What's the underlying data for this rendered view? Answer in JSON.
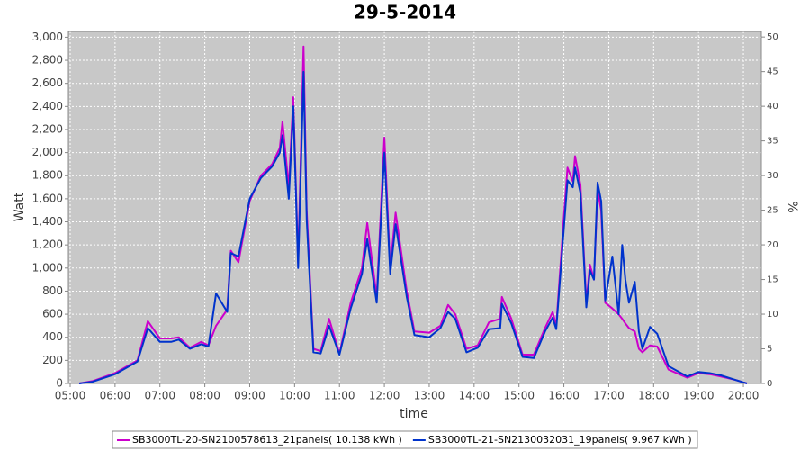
{
  "chart_data": {
    "type": "line",
    "title": "29-5-2014",
    "x_label": "time",
    "y_label": "Watt",
    "y2_label": "%",
    "x": [
      5.2,
      5.5,
      6.0,
      6.5,
      6.73,
      7.0,
      7.25,
      7.42,
      7.67,
      7.92,
      8.08,
      8.25,
      8.5,
      8.58,
      8.75,
      9.0,
      9.25,
      9.5,
      9.67,
      9.73,
      9.87,
      9.97,
      10.08,
      10.2,
      10.27,
      10.42,
      10.58,
      10.77,
      11.0,
      11.25,
      11.5,
      11.62,
      11.83,
      12.0,
      12.13,
      12.25,
      12.5,
      12.67,
      13.0,
      13.25,
      13.42,
      13.58,
      13.83,
      14.08,
      14.33,
      14.58,
      14.62,
      14.83,
      15.08,
      15.33,
      15.58,
      15.75,
      15.83,
      16.0,
      16.08,
      16.2,
      16.25,
      16.37,
      16.5,
      16.58,
      16.67,
      16.75,
      16.83,
      16.92,
      17.08,
      17.22,
      17.3,
      17.37,
      17.45,
      17.58,
      17.67,
      17.75,
      17.92,
      18.08,
      18.33,
      18.75,
      19.0,
      19.25,
      19.5,
      19.83,
      20.08
    ],
    "series": [
      {
        "name": "SB3000TL-20-SN2100578613_21panels( 10.138 kWh )",
        "color": "#cc00cc",
        "values": [
          0,
          20,
          90,
          200,
          540,
          390,
          390,
          400,
          310,
          360,
          330,
          500,
          640,
          1150,
          1050,
          1580,
          1800,
          1900,
          2040,
          2270,
          1700,
          2480,
          1050,
          2920,
          1500,
          300,
          280,
          560,
          260,
          700,
          1000,
          1390,
          750,
          2130,
          1000,
          1480,
          800,
          450,
          440,
          500,
          680,
          600,
          300,
          330,
          530,
          560,
          750,
          560,
          250,
          250,
          480,
          620,
          500,
          1450,
          1870,
          1750,
          1970,
          1720,
          700,
          1030,
          900,
          1670,
          1500,
          700,
          650,
          600,
          560,
          520,
          480,
          450,
          300,
          270,
          330,
          320,
          120,
          50,
          90,
          80,
          60,
          30,
          0
        ]
      },
      {
        "name": "SB3000TL-21-SN2130032031_19panels( 9.967 kWh )",
        "color": "#0033cc",
        "values": [
          0,
          15,
          80,
          190,
          480,
          360,
          360,
          380,
          300,
          340,
          320,
          780,
          620,
          1130,
          1100,
          1600,
          1780,
          1880,
          2000,
          2150,
          1600,
          2400,
          1000,
          2700,
          1420,
          270,
          260,
          500,
          250,
          650,
          950,
          1250,
          700,
          2000,
          950,
          1380,
          750,
          420,
          400,
          480,
          620,
          560,
          270,
          310,
          470,
          480,
          690,
          520,
          230,
          220,
          450,
          570,
          470,
          1350,
          1760,
          1700,
          1870,
          1650,
          660,
          980,
          900,
          1740,
          1580,
          720,
          1100,
          600,
          1200,
          900,
          700,
          880,
          450,
          300,
          490,
          430,
          150,
          60,
          100,
          90,
          70,
          30,
          0
        ]
      }
    ],
    "xlim": [
      4.96,
      20.4
    ],
    "xticks": [
      {
        "value": 5,
        "label": "05:00"
      },
      {
        "value": 6,
        "label": "06:00"
      },
      {
        "value": 7,
        "label": "07:00"
      },
      {
        "value": 8,
        "label": "08:00"
      },
      {
        "value": 9,
        "label": "09:00"
      },
      {
        "value": 10,
        "label": "10:00"
      },
      {
        "value": 11,
        "label": "11:00"
      },
      {
        "value": 12,
        "label": "12:00"
      },
      {
        "value": 13,
        "label": "13:00"
      },
      {
        "value": 14,
        "label": "14:00"
      },
      {
        "value": 15,
        "label": "15:00"
      },
      {
        "value": 16,
        "label": "16:00"
      },
      {
        "value": 17,
        "label": "17:00"
      },
      {
        "value": 18,
        "label": "18:00"
      },
      {
        "value": 19,
        "label": "19:00"
      },
      {
        "value": 20,
        "label": "20:00"
      }
    ],
    "ylim": [
      0,
      3050
    ],
    "yticks": [
      0,
      200,
      400,
      600,
      800,
      {
        "value": 1000,
        "label": "1,000"
      },
      {
        "value": 1200,
        "label": "1,200"
      },
      {
        "value": 1400,
        "label": "1,400"
      },
      {
        "value": 1600,
        "label": "1,600"
      },
      {
        "value": 1800,
        "label": "1,800"
      },
      {
        "value": 2000,
        "label": "2,000"
      },
      {
        "value": 2200,
        "label": "2,200"
      },
      {
        "value": 2400,
        "label": "2,400"
      },
      {
        "value": 2600,
        "label": "2,600"
      },
      {
        "value": 2800,
        "label": "2,800"
      },
      {
        "value": 3000,
        "label": "3,000"
      }
    ],
    "y2lim": [
      0,
      50.8
    ],
    "y2ticks": [
      0,
      5,
      10,
      15,
      20,
      25,
      30,
      35,
      40,
      45,
      50
    ],
    "grid": true
  }
}
